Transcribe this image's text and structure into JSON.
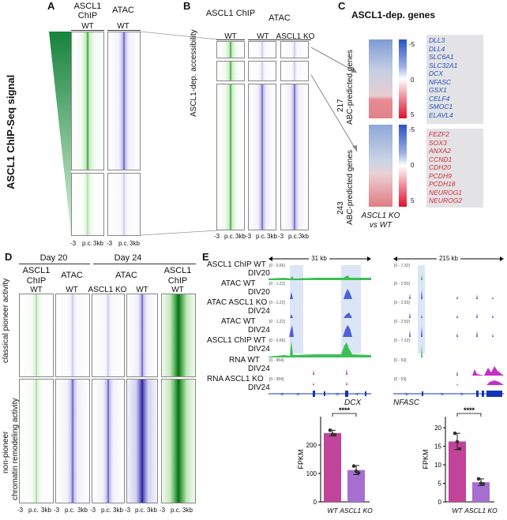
{
  "panels": {
    "A": "A",
    "B": "B",
    "C": "C",
    "D": "D",
    "E": "E"
  },
  "panelA": {
    "col1": "ASCL1\nChIP",
    "col1_sub": "WT",
    "col2": "ATAC",
    "col2_sub": "WT",
    "side_label": "ASCL1 ChIP-Seq signal",
    "x_ticks": [
      "-3",
      "p.c.",
      "3kb"
    ]
  },
  "panelB": {
    "col1": "ASCL1 ChIP",
    "col1_sub": "WT",
    "col2": "ATAC",
    "col2_sub1": "WT",
    "col2_sub2": "ASCL1 KO",
    "side_label": "ASCL1-dep. accessibility",
    "x_ticks": [
      "-3",
      "p.c.",
      "3kb"
    ]
  },
  "panelC": {
    "title": "ASCL1-dep. genes",
    "group1_count": "217",
    "group1_label": "ABC-predicted genes",
    "group2_count": "243",
    "group2_label": "ABC-predicted genes",
    "scale_ticks": [
      "-5",
      "0",
      "5"
    ],
    "xlabel1": "ASCL1 KO",
    "xlabel2": "vs WT",
    "genes_down": [
      "DLL3",
      "DLL4",
      "SLC6A1",
      "SLC32A1",
      "DCX",
      "NFASC",
      "GSX1",
      "CELF4",
      "SMOC1",
      "ELAVL4"
    ],
    "genes_up": [
      "FEZF2",
      "SOX3",
      "ANXA2",
      "CCND1",
      "CDH20",
      "PCDH9",
      "PCDH18",
      "NEUROG1",
      "NEUROG2"
    ],
    "colors": {
      "down": "#1f4fbf",
      "up": "#d8283a"
    }
  },
  "panelD": {
    "day20": "Day 20",
    "day24": "Day 24",
    "cols": [
      "ASCL1 ChIP",
      "ATAC",
      "ATAC",
      "ATAC",
      "ASCL1 ChIP"
    ],
    "subs": [
      "WT",
      "WT",
      "ASCL1 KO",
      "WT",
      "WT"
    ],
    "row1": "classical pioneer activity",
    "row2a": "non-pioneer",
    "row2b": "chromatin remodeling activity",
    "x_ticks": [
      "-3",
      "p.c.",
      "3kb"
    ]
  },
  "panelE": {
    "scale1": "31 kb",
    "scale2": "215 kb",
    "tracks": [
      {
        "l1": "ASCL1 ChIP WT",
        "l2": "DIV20",
        "r1": "[0 - 0.66]",
        "r2": "[0 - 7.32]"
      },
      {
        "l1": "ATAC WT",
        "l2": "DIV20",
        "r1": "[0 - 1.22]",
        "r2": "[0 - 2.50]"
      },
      {
        "l1": "ATAC ASCL1 KO",
        "l2": "DIV24",
        "r1": "[0 - 1.22]",
        "r2": "[0 - 2.50]"
      },
      {
        "l1": "ATAC WT",
        "l2": "DIV24",
        "r1": "[0 - 1.22]",
        "r2": "[0 - 2.50]"
      },
      {
        "l1": "ASCL1 ChIP WT",
        "l2": "DIV24",
        "r1": "[0 - 0.66]",
        "r2": "[0 - 7.32]"
      },
      {
        "l1": "RNA WT",
        "l2": "DIV24",
        "r1": "[0 - 954]",
        "r2": "[0 - 53]"
      },
      {
        "l1": "RNA ASCL1 KO",
        "l2": "DIV24",
        "r1": "[0 - 954]",
        "r2": "[0 - 53]"
      }
    ],
    "gene1": "DCX",
    "gene2": "NFASC"
  },
  "chart_data": [
    {
      "type": "bar",
      "title": "DCX",
      "categories": [
        "WT",
        "ASCL1 KO"
      ],
      "values": [
        242,
        112
      ],
      "points": [
        [
          252,
          238,
          236
        ],
        [
          126,
          108,
          102
        ]
      ],
      "errors": [
        10,
        16
      ],
      "ylabel": "FPKM",
      "ylim": [
        0,
        300
      ],
      "yticks": [
        0,
        100,
        200
      ],
      "significance": "****",
      "colors": [
        "#c2439a",
        "#a66fd0"
      ]
    },
    {
      "type": "bar",
      "title": "NFASC",
      "categories": [
        "WT",
        "ASCL1 KO"
      ],
      "values": [
        16.3,
        5.3
      ],
      "points": [
        [
          18.5,
          16.2,
          14.3
        ],
        [
          6.2,
          5.0,
          4.8
        ]
      ],
      "errors": [
        2.2,
        0.9
      ],
      "ylabel": "FPKM",
      "ylim": [
        0,
        23
      ],
      "yticks": [
        0,
        5,
        10,
        15,
        20
      ],
      "significance": "****",
      "colors": [
        "#c2439a",
        "#a66fd0"
      ]
    }
  ]
}
